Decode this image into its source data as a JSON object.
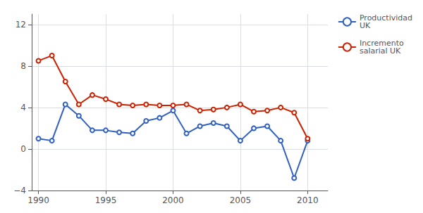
{
  "chart_data": {
    "type": "line",
    "x": [
      1990,
      1991,
      1992,
      1993,
      1994,
      1995,
      1996,
      1997,
      1998,
      1999,
      2000,
      2001,
      2002,
      2003,
      2004,
      2005,
      2006,
      2007,
      2008,
      2009,
      2010
    ],
    "series": [
      {
        "name": "Productividad\nUK",
        "color": "#3060c0",
        "values": [
          1.0,
          0.8,
          4.3,
          3.2,
          1.8,
          1.8,
          1.6,
          1.5,
          2.7,
          3.0,
          3.7,
          1.5,
          2.2,
          2.5,
          2.2,
          0.8,
          2.0,
          2.2,
          0.8,
          -2.8,
          0.8
        ]
      },
      {
        "name": "Incremento\nsalarial UK",
        "color": "#cc2200",
        "values": [
          8.5,
          9.0,
          6.5,
          4.3,
          5.2,
          4.8,
          4.3,
          4.2,
          4.3,
          4.2,
          4.2,
          4.3,
          3.7,
          3.8,
          4.0,
          4.3,
          3.6,
          3.7,
          4.0,
          3.5,
          1.0
        ]
      }
    ],
    "xlim": [
      1989.5,
      2011.5
    ],
    "xticks": [
      1990,
      1995,
      2000,
      2005,
      2010
    ],
    "ylim": [
      -4,
      13
    ],
    "yticks": [
      {
        "value": -4,
        "label": "−4"
      },
      0,
      4,
      8,
      12
    ],
    "grid": true,
    "legend": "right"
  }
}
